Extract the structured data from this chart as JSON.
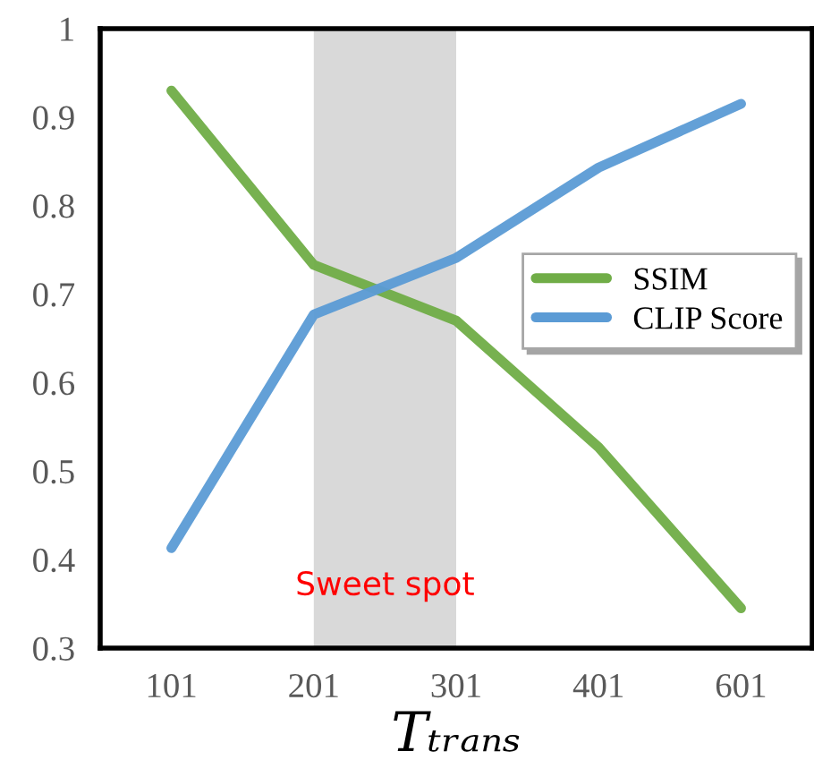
{
  "chart_data": {
    "type": "line",
    "categories": [
      "101",
      "201",
      "301",
      "401",
      "601"
    ],
    "series": [
      {
        "name": "SSIM",
        "color": "#70ad47",
        "values": [
          0.93,
          0.733,
          0.67,
          0.527,
          0.345
        ]
      },
      {
        "name": "CLIP Score",
        "color": "#5b9bd5",
        "values": [
          0.413,
          0.677,
          0.741,
          0.843,
          0.915
        ]
      }
    ],
    "xlabel": "Tₜᵣₐₙₛ",
    "ylim": [
      0.3,
      1
    ],
    "yticks": [
      0.3,
      0.4,
      0.5,
      0.6,
      0.7,
      0.8,
      0.9,
      1
    ],
    "bands": [
      {
        "axis": "x",
        "from": "201",
        "to": "301",
        "color": "#d9d9d9"
      }
    ],
    "annotations": [
      "Sweet spot"
    ],
    "legend": "right",
    "grid": false,
    "marker": "none",
    "line_style": "solid"
  }
}
